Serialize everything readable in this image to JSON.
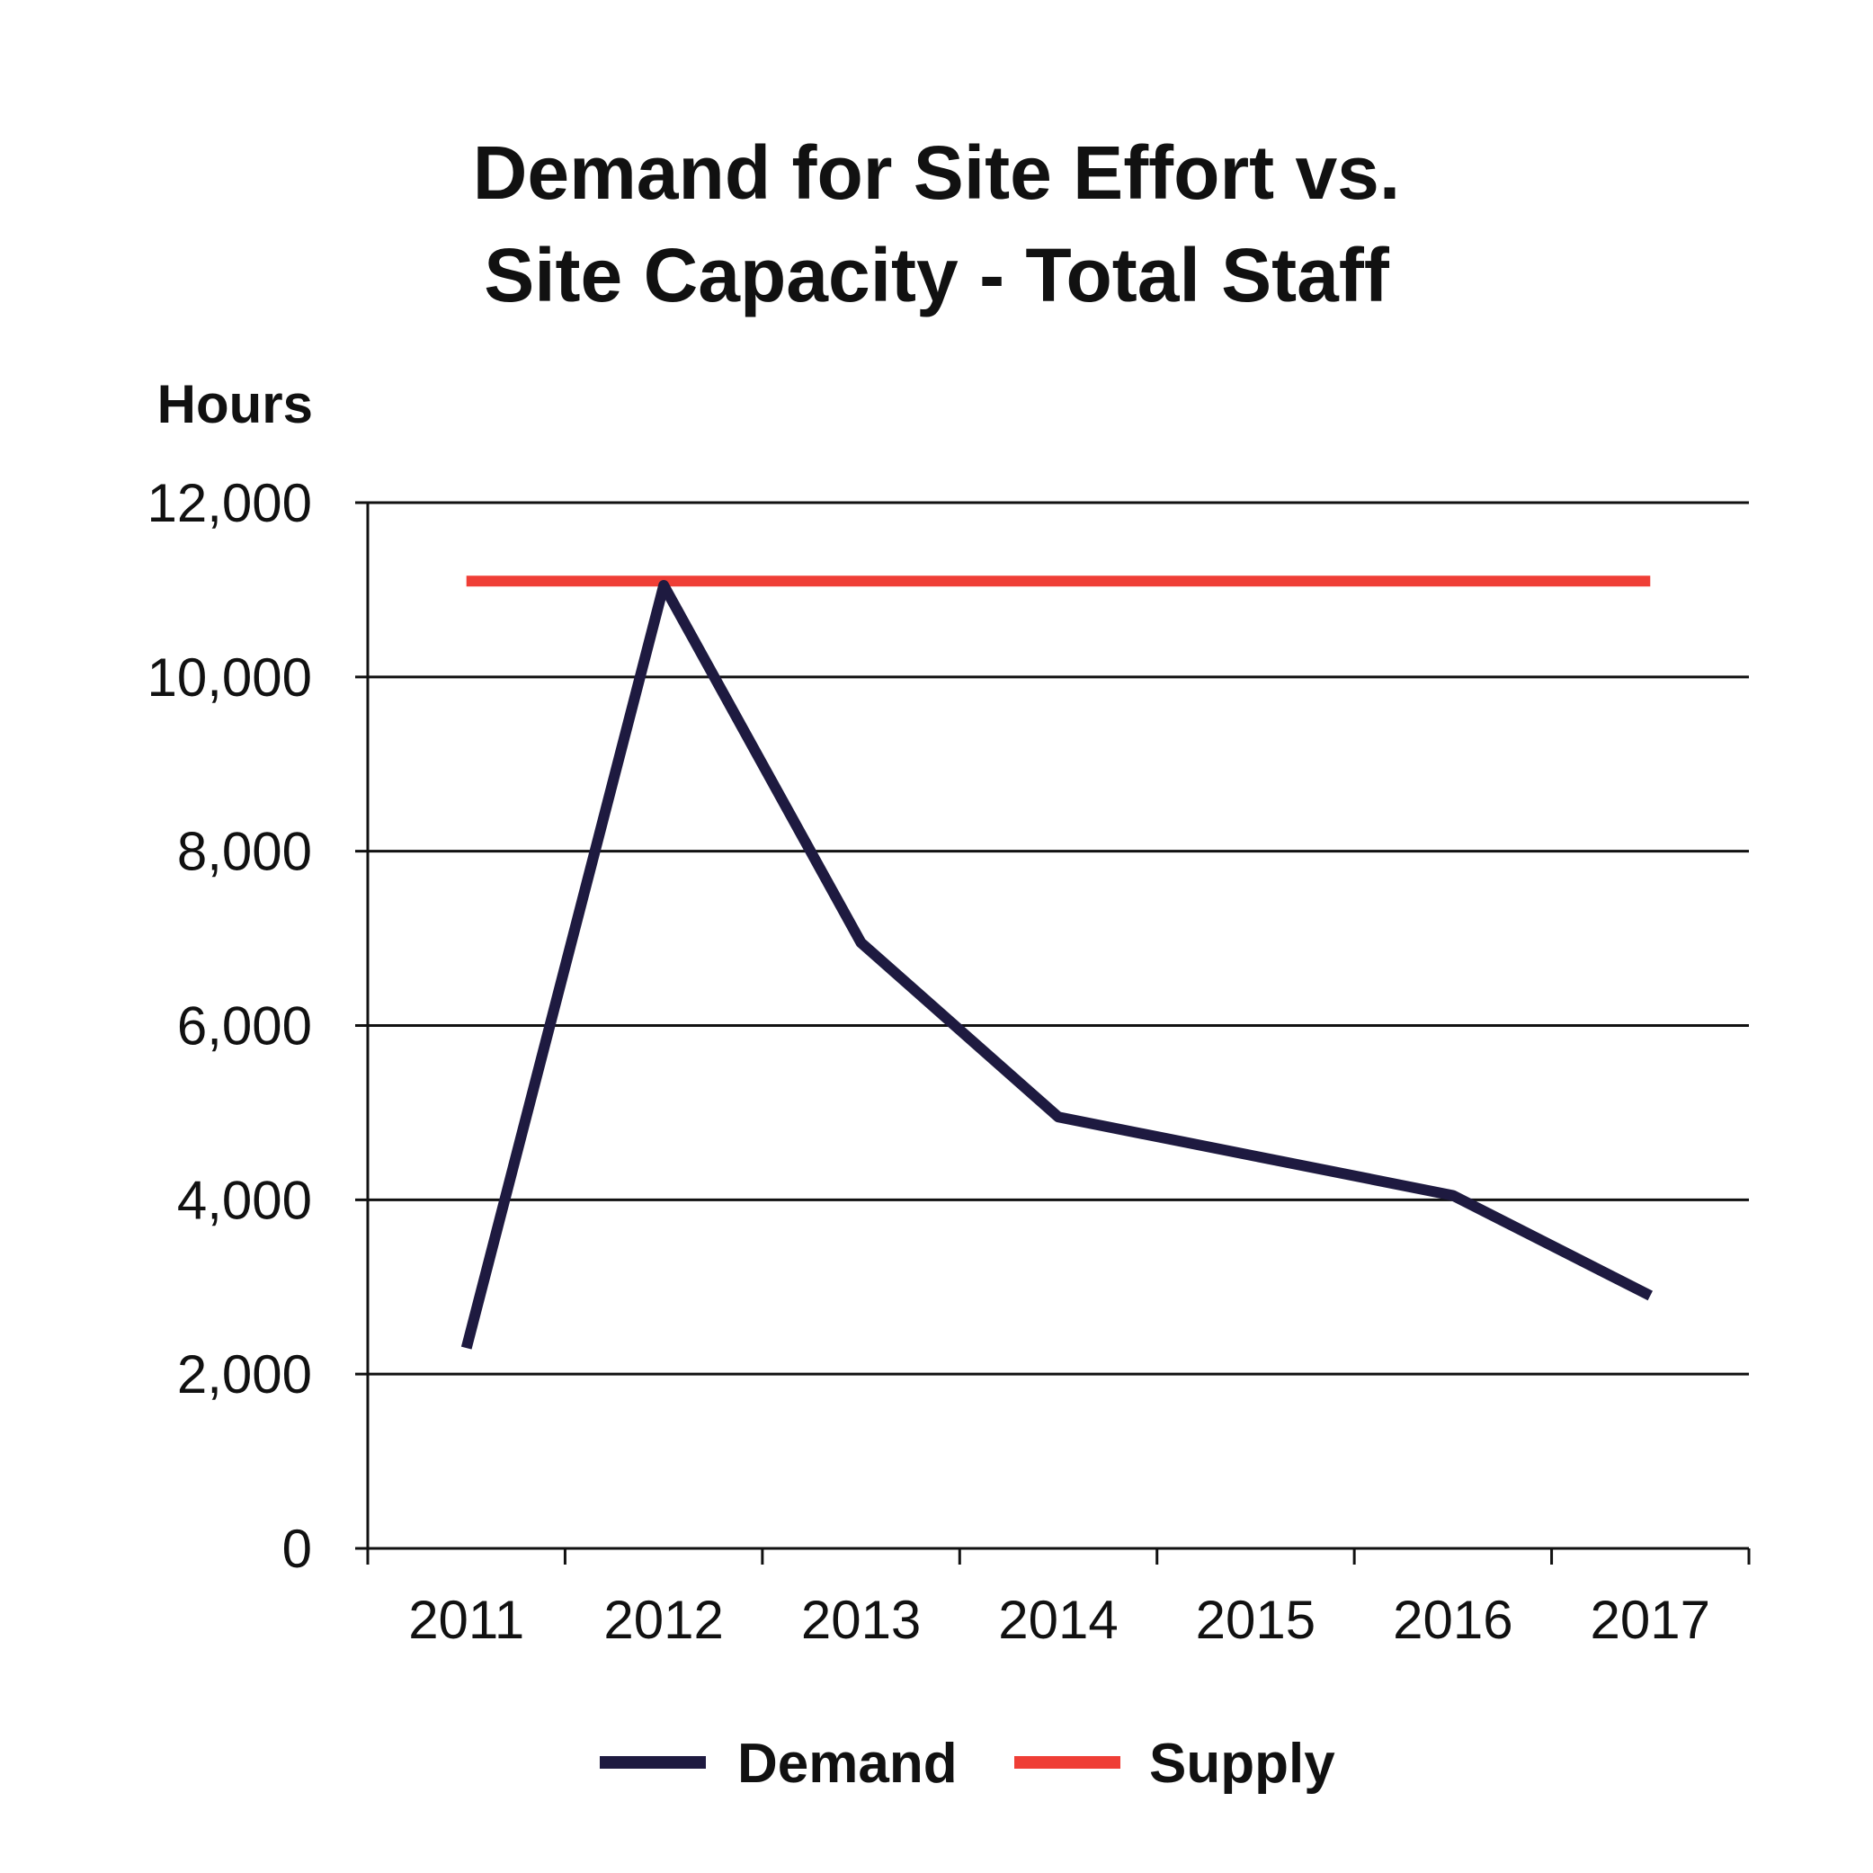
{
  "chart_data": {
    "type": "line",
    "title_lines": [
      "Demand for Site Effort vs.",
      "Site Capacity - Total Staff"
    ],
    "ylabel": "Hours",
    "xlabel": "",
    "categories": [
      "2011",
      "2012",
      "2013",
      "2014",
      "2015",
      "2016",
      "2017"
    ],
    "ylim": [
      0,
      12000
    ],
    "yticks": [
      0,
      2000,
      4000,
      6000,
      8000,
      10000,
      12000
    ],
    "ytick_labels": [
      "0",
      "2,000",
      "4,000",
      "6,000",
      "8,000",
      "10,000",
      "12,000"
    ],
    "grid": true,
    "legend_position": "bottom",
    "series": [
      {
        "name": "Demand",
        "color": "#1e1a40",
        "values": [
          2300,
          11050,
          6950,
          4950,
          4500,
          4050,
          2900
        ]
      },
      {
        "name": "Supply",
        "color": "#ef3e36",
        "values": [
          11100,
          11100,
          11100,
          11100,
          11100,
          11100,
          11100
        ]
      }
    ]
  }
}
